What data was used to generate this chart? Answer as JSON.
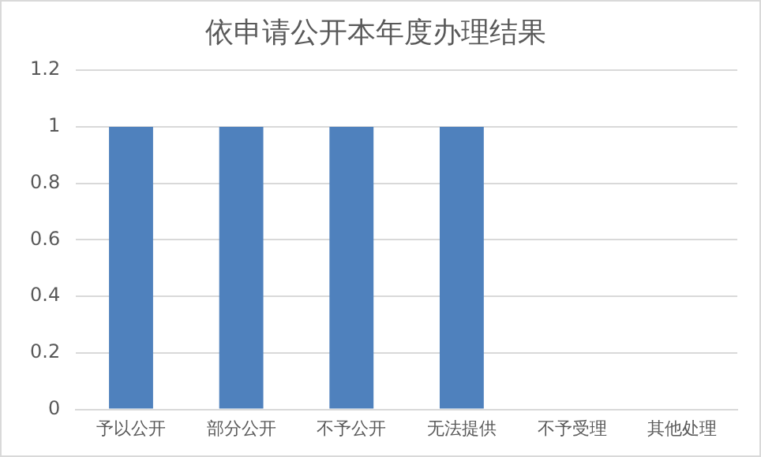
{
  "chart_data": {
    "type": "bar",
    "title": "依申请公开本年度办理结果",
    "categories": [
      "予以公开",
      "部分公开",
      "不予公开",
      "无法提供",
      "不予受理",
      "其他处理"
    ],
    "values": [
      1,
      1,
      1,
      1,
      0,
      0
    ],
    "color": "#4f81bd",
    "ylim": [
      0,
      1.2
    ],
    "yticks": [
      0,
      0.2,
      0.4,
      0.6,
      0.8,
      1,
      1.2
    ],
    "grid": "y",
    "legend": false
  }
}
